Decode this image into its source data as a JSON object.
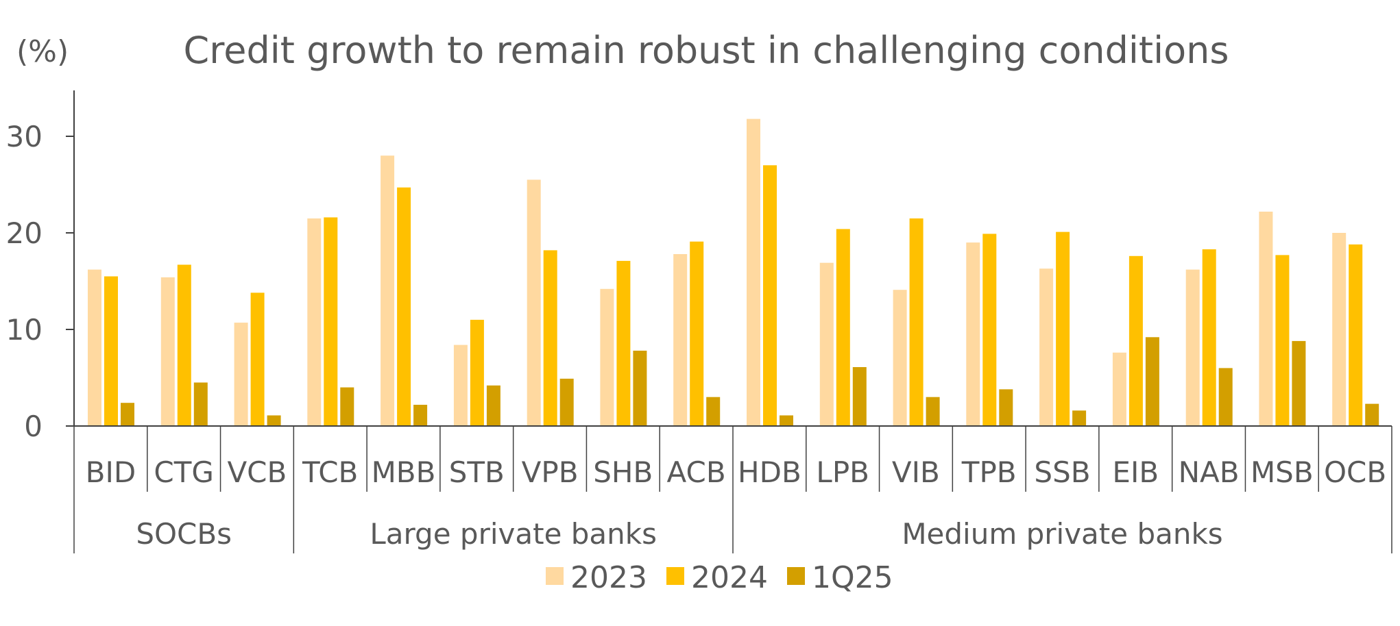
{
  "chart_data": {
    "type": "bar",
    "title": "Credit growth to remain robust in challenging conditions",
    "ylabel": "(%)",
    "xlabel": "",
    "ylim": [
      0,
      34
    ],
    "yticks": [
      0,
      10,
      20,
      30
    ],
    "grid": false,
    "legend_position": "bottom",
    "categories": [
      "BID",
      "CTG",
      "VCB",
      "TCB",
      "MBB",
      "STB",
      "VPB",
      "SHB",
      "ACB",
      "HDB",
      "LPB",
      "VIB",
      "TPB",
      "SSB",
      "EIB",
      "NAB",
      "MSB",
      "OCB"
    ],
    "groups": [
      {
        "name": "SOCBs",
        "start": 0,
        "count": 3
      },
      {
        "name": "Large private banks",
        "start": 3,
        "count": 6
      },
      {
        "name": "Medium private banks",
        "start": 9,
        "count": 9
      }
    ],
    "series": [
      {
        "name": "2023",
        "color": "#FFD9A0",
        "values": [
          16.2,
          15.4,
          10.7,
          21.5,
          28.0,
          8.4,
          25.5,
          14.2,
          17.8,
          31.8,
          16.9,
          14.1,
          19.0,
          16.3,
          7.6,
          16.2,
          22.2,
          20.0
        ]
      },
      {
        "name": "2024",
        "color": "#FFC000",
        "values": [
          15.5,
          16.7,
          13.8,
          21.6,
          24.7,
          11.0,
          18.2,
          17.1,
          19.1,
          27.0,
          20.4,
          21.5,
          19.9,
          20.1,
          17.6,
          18.3,
          17.7,
          18.8
        ]
      },
      {
        "name": "1Q25",
        "color": "#D39F00",
        "values": [
          2.4,
          4.5,
          1.1,
          4.0,
          2.2,
          4.2,
          4.9,
          7.8,
          3.0,
          1.1,
          6.1,
          3.0,
          3.8,
          1.6,
          9.2,
          6.0,
          8.8,
          2.3
        ]
      }
    ]
  }
}
